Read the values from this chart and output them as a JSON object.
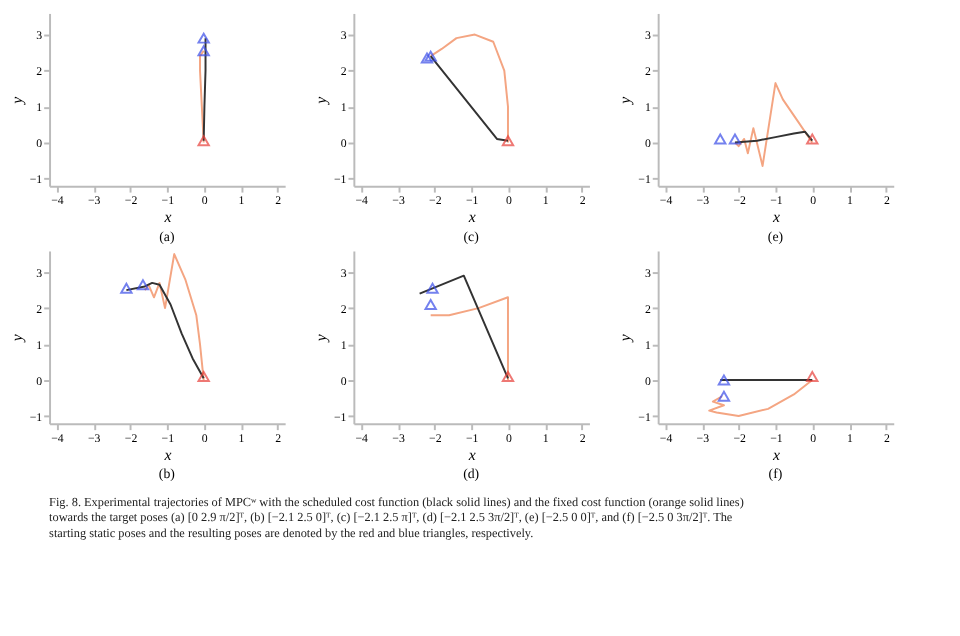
{
  "chart_data": [
    {
      "type": "line",
      "title": "(a)",
      "xlabel": "x",
      "ylabel": "y",
      "xlim": [
        -4.2,
        2.2
      ],
      "ylim": [
        -1.2,
        3.6
      ],
      "xticks": [
        -4,
        -3,
        -2,
        -1,
        0,
        1,
        2
      ],
      "yticks": [
        -1,
        0,
        1,
        2,
        3
      ],
      "grid": false,
      "series": [
        {
          "color": "#f4a582",
          "x": [
            0,
            -0.05,
            -0.1,
            -0.1,
            0
          ],
          "values": [
            0,
            1,
            2,
            2.4,
            2.55
          ]
        },
        {
          "color": "#333333",
          "x": [
            0,
            0.02,
            0.05,
            0.05
          ],
          "values": [
            0.05,
            1,
            2,
            2.9
          ]
        },
        {
          "type": "scatter",
          "marker": "triangle",
          "colors": [
            "#e8403a"
          ],
          "x": [
            0
          ],
          "values": [
            0.05
          ]
        },
        {
          "type": "scatter",
          "marker": "triangle",
          "colors": [
            "#3a4de8",
            "#3a4de8"
          ],
          "x": [
            0,
            0
          ],
          "values": [
            2.9,
            2.55
          ]
        }
      ]
    },
    {
      "type": "line",
      "title": "(c)",
      "xlabel": "x",
      "ylabel": "y",
      "xlim": [
        -4.2,
        2.2
      ],
      "ylim": [
        -1.2,
        3.6
      ],
      "xticks": [
        -4,
        -3,
        -2,
        -1,
        0,
        1,
        2
      ],
      "yticks": [
        -1,
        0,
        1,
        2,
        3
      ],
      "grid": false,
      "series": [
        {
          "color": "#f4a582",
          "x": [
            0,
            0,
            -0.1,
            -0.4,
            -0.9,
            -1.4,
            -1.8,
            -2.1
          ],
          "values": [
            0,
            1,
            2,
            2.8,
            3.0,
            2.9,
            2.6,
            2.4
          ]
        },
        {
          "color": "#333333",
          "x": [
            0,
            -0.3,
            -2.1
          ],
          "values": [
            0.05,
            0.1,
            2.4
          ]
        },
        {
          "type": "scatter",
          "marker": "triangle",
          "colors": [
            "#e8403a"
          ],
          "x": [
            0
          ],
          "values": [
            0.05
          ]
        },
        {
          "type": "scatter",
          "marker": "triangle",
          "colors": [
            "#3a4de8",
            "#3a4de8"
          ],
          "x": [
            -2.1,
            -2.2
          ],
          "values": [
            2.4,
            2.35
          ]
        }
      ]
    },
    {
      "type": "line",
      "title": "(e)",
      "xlabel": "x",
      "ylabel": "y",
      "xlim": [
        -4.2,
        2.2
      ],
      "ylim": [
        -1.2,
        3.6
      ],
      "xticks": [
        -4,
        -3,
        -2,
        -1,
        0,
        1,
        2
      ],
      "yticks": [
        -1,
        0,
        1,
        2,
        3
      ],
      "grid": false,
      "series": [
        {
          "color": "#f4a582",
          "x": [
            0,
            -0.4,
            -0.8,
            -1,
            -1.35,
            -1.6,
            -1.75,
            -1.85,
            -2,
            -2.1
          ],
          "values": [
            0,
            0.6,
            1.2,
            1.65,
            -0.65,
            0.4,
            -0.3,
            0.1,
            -0.1,
            0
          ]
        },
        {
          "color": "#333333",
          "x": [
            0,
            -0.2,
            -0.5,
            -1,
            -1.5,
            -2.1
          ],
          "values": [
            0.05,
            0.3,
            0.25,
            0.15,
            0.05,
            0
          ]
        },
        {
          "type": "scatter",
          "marker": "triangle",
          "colors": [
            "#e8403a"
          ],
          "x": [
            0
          ],
          "values": [
            0.1
          ]
        },
        {
          "type": "scatter",
          "marker": "triangle",
          "colors": [
            "#3a4de8",
            "#3a4de8"
          ],
          "x": [
            -2.1,
            -2.5
          ],
          "values": [
            0.1,
            0.1
          ]
        }
      ]
    },
    {
      "type": "line",
      "title": "(b)",
      "xlabel": "x",
      "ylabel": "y",
      "xlim": [
        -4.2,
        2.2
      ],
      "ylim": [
        -1.2,
        3.6
      ],
      "xticks": [
        -4,
        -3,
        -2,
        -1,
        0,
        1,
        2
      ],
      "yticks": [
        -1,
        0,
        1,
        2,
        3
      ],
      "grid": false,
      "series": [
        {
          "color": "#f4a582",
          "x": [
            0,
            -0.1,
            -0.2,
            -0.5,
            -0.8,
            -1.05,
            -1.2,
            -1.35,
            -1.5,
            -1.6
          ],
          "values": [
            0,
            1,
            1.8,
            2.8,
            3.5,
            2.0,
            2.7,
            2.3,
            2.65,
            2.5
          ]
        },
        {
          "color": "#333333",
          "x": [
            0,
            -0.3,
            -0.6,
            -0.9,
            -1.2,
            -1.4,
            -1.6,
            -2.1
          ],
          "values": [
            0.05,
            0.6,
            1.3,
            2.1,
            2.65,
            2.7,
            2.6,
            2.5
          ]
        },
        {
          "type": "scatter",
          "marker": "triangle",
          "colors": [
            "#e8403a"
          ],
          "x": [
            0
          ],
          "values": [
            0.1
          ]
        },
        {
          "type": "scatter",
          "marker": "triangle",
          "colors": [
            "#3a4de8",
            "#3a4de8"
          ],
          "x": [
            -1.65,
            -2.1
          ],
          "values": [
            2.65,
            2.55
          ]
        }
      ]
    },
    {
      "type": "line",
      "title": "(d)",
      "xlabel": "x",
      "ylabel": "y",
      "xlim": [
        -4.2,
        2.2
      ],
      "ylim": [
        -1.2,
        3.6
      ],
      "xticks": [
        -4,
        -3,
        -2,
        -1,
        0,
        1,
        2
      ],
      "yticks": [
        -1,
        0,
        1,
        2,
        3
      ],
      "grid": false,
      "series": [
        {
          "color": "#f4a582",
          "x": [
            0,
            0,
            -0.8,
            -1.6,
            -2.1
          ],
          "values": [
            0,
            2.3,
            2.0,
            1.8,
            1.8
          ]
        },
        {
          "color": "#333333",
          "x": [
            0,
            -1.2,
            -2.4
          ],
          "values": [
            0.05,
            2.9,
            2.4
          ]
        },
        {
          "type": "scatter",
          "marker": "triangle",
          "colors": [
            "#e8403a"
          ],
          "x": [
            0
          ],
          "values": [
            0.1
          ]
        },
        {
          "type": "scatter",
          "marker": "triangle",
          "colors": [
            "#3a4de8",
            "#3a4de8"
          ],
          "x": [
            -2.05,
            -2.1
          ],
          "values": [
            2.55,
            2.1
          ]
        }
      ]
    },
    {
      "type": "line",
      "title": "(f)",
      "xlabel": "x",
      "ylabel": "y",
      "xlim": [
        -4.2,
        2.2
      ],
      "ylim": [
        -1.2,
        3.6
      ],
      "xticks": [
        -4,
        -3,
        -2,
        -1,
        0,
        1,
        2
      ],
      "yticks": [
        -1,
        0,
        1,
        2,
        3
      ],
      "grid": false,
      "annotations": [
        "Fig. 8.   Experimental trajectories of MPCʷ with the scheduled cost function (black solid lines) and the fixed cost function (orange solid lines) towards the target poses (a) [0 2.9 π/2]ᵀ, (b) [−2.1 2.5 0]ᵀ, (c) [−2.1 2.5 π]ᵀ, (d) [−2.1 2.5 3π/2]ᵀ, (e) [−2.5 0 0]ᵀ, and (f) [−2.5 0 3π/2]ᵀ. The starting static poses and the resulting poses are denoted by the red and blue triangles, respectively."
      ],
      "series": [
        {
          "color": "#f4a582",
          "x": [
            0,
            -0.5,
            -1.2,
            -2,
            -2.6,
            -2.8,
            -2.4,
            -2.7,
            -2.45
          ],
          "values": [
            0,
            -0.4,
            -0.8,
            -1.0,
            -0.9,
            -0.85,
            -0.7,
            -0.6,
            -0.45
          ]
        },
        {
          "color": "#333333",
          "x": [
            0,
            -2.5
          ],
          "values": [
            0,
            0
          ]
        },
        {
          "type": "scatter",
          "marker": "triangle",
          "colors": [
            "#e8403a"
          ],
          "x": [
            0
          ],
          "values": [
            0.1
          ]
        },
        {
          "type": "scatter",
          "marker": "triangle",
          "colors": [
            "#3a4de8",
            "#3a4de8"
          ],
          "x": [
            -2.4,
            -2.4
          ],
          "values": [
            0,
            -0.45
          ]
        }
      ]
    }
  ]
}
